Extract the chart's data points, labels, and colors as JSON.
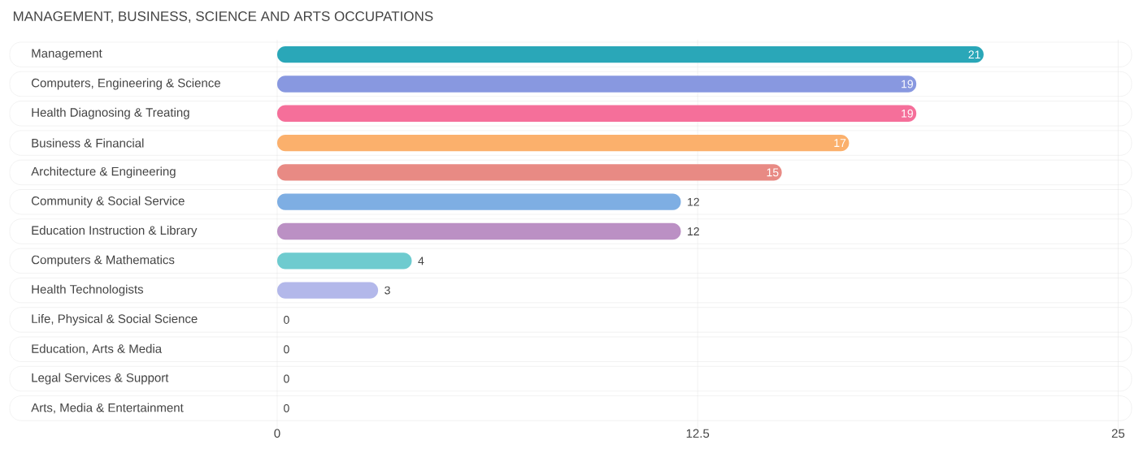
{
  "chart_data": {
    "type": "bar",
    "orientation": "horizontal",
    "title": "MANAGEMENT, BUSINESS, SCIENCE AND ARTS OCCUPATIONS",
    "categories": [
      "Management",
      "Computers, Engineering & Science",
      "Health Diagnosing & Treating",
      "Business & Financial",
      "Architecture & Engineering",
      "Community & Social Service",
      "Education Instruction & Library",
      "Computers & Mathematics",
      "Health Technologists",
      "Life, Physical & Social Science",
      "Education, Arts & Media",
      "Legal Services & Support",
      "Arts, Media & Entertainment"
    ],
    "values": [
      21,
      19,
      19,
      17,
      15,
      12,
      12,
      4,
      3,
      0,
      0,
      0,
      0
    ],
    "colors": [
      "#2aa7b8",
      "#8898e0",
      "#f56f9a",
      "#fbb06c",
      "#e88a84",
      "#7eaee3",
      "#bb90c4",
      "#6ecbcf",
      "#b3b8ea",
      "#f6a6c2",
      "#fccb9c",
      "#f2b0ae",
      "#a8c8ee"
    ],
    "xlim": [
      -7.95,
      25.4
    ],
    "xticks": [
      0,
      12.5,
      25
    ],
    "grid": "x",
    "data_labels": true
  }
}
